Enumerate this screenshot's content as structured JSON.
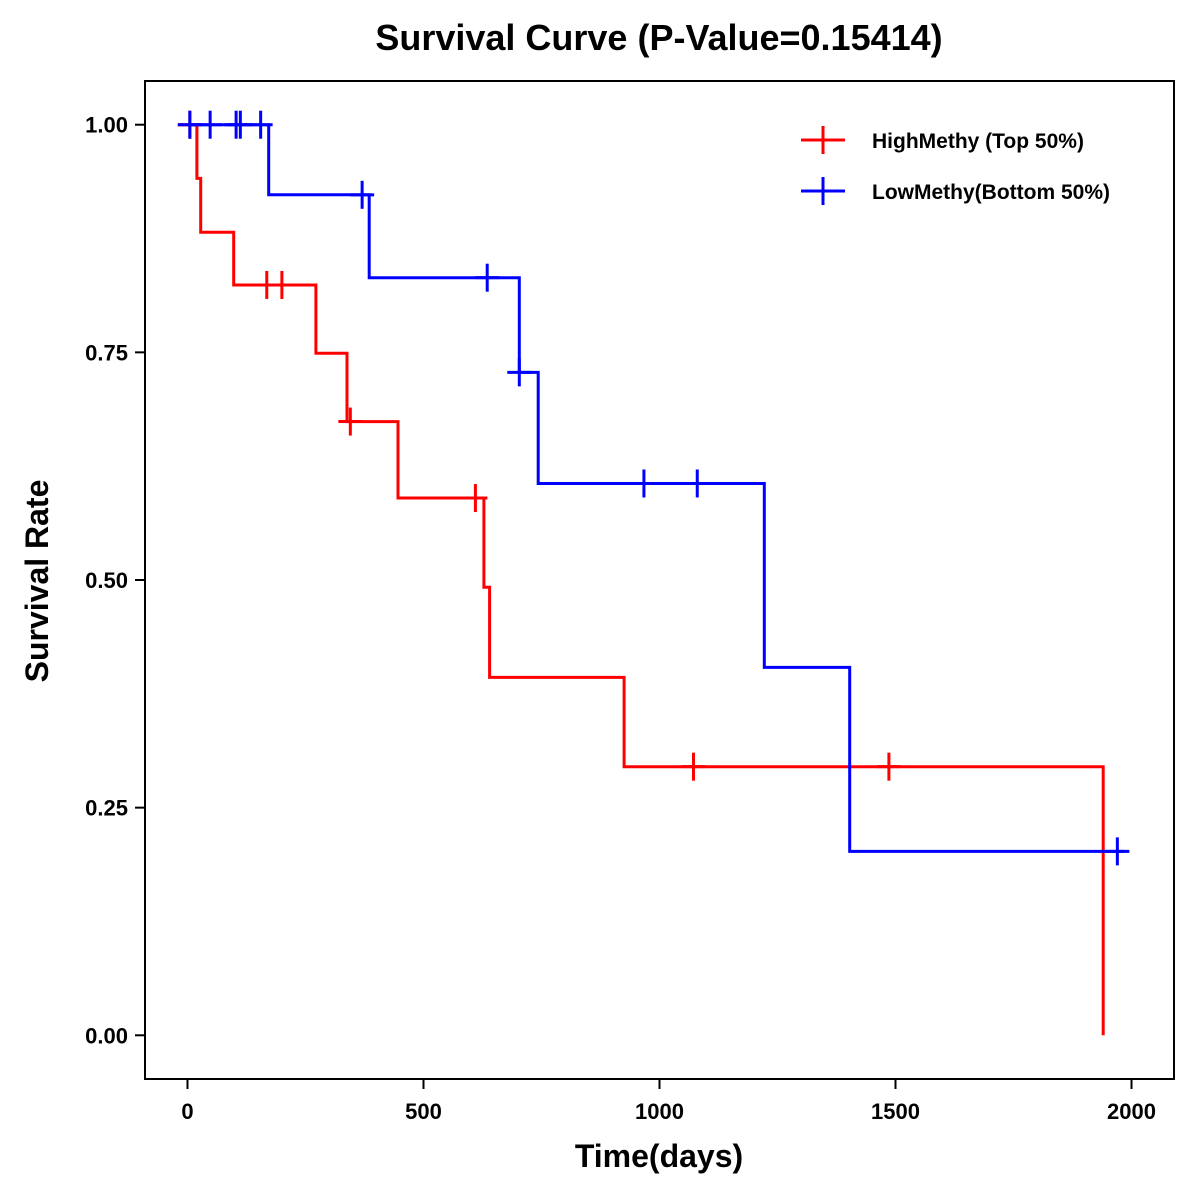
{
  "chart_data": {
    "type": "line",
    "subtype": "kaplan-meier step curve",
    "title": "Survival Curve (P-Value=0.15414)",
    "xlabel": "Time(days)",
    "ylabel": "Survival Rate",
    "xlim": [
      -90,
      2090
    ],
    "ylim": [
      -0.048,
      1.048
    ],
    "x_ticks": [
      0,
      500,
      1000,
      1500,
      2000
    ],
    "x_tick_labels": [
      "0",
      "500",
      "1000",
      "1500",
      "2000"
    ],
    "y_ticks": [
      0,
      0.25,
      0.5,
      0.75,
      1.0
    ],
    "y_tick_labels": [
      "0.00",
      "0.25",
      "0.50",
      "0.75",
      "1.00"
    ],
    "grid": false,
    "legend_position": "top-right",
    "series": [
      {
        "name": "HighMethy (Top 50%)",
        "color": "#ff0000",
        "steps": [
          [
            -20,
            1.0
          ],
          [
            20,
            1.0
          ],
          [
            20,
            0.941
          ],
          [
            28,
            0.941
          ],
          [
            28,
            0.882
          ],
          [
            98,
            0.882
          ],
          [
            98,
            0.824
          ],
          [
            272,
            0.824
          ],
          [
            272,
            0.749
          ],
          [
            338,
            0.749
          ],
          [
            338,
            0.674
          ],
          [
            446,
            0.674
          ],
          [
            446,
            0.59
          ],
          [
            628,
            0.59
          ],
          [
            628,
            0.492
          ],
          [
            640,
            0.492
          ],
          [
            640,
            0.393
          ],
          [
            925,
            0.393
          ],
          [
            925,
            0.295
          ],
          [
            1940,
            0.295
          ],
          [
            1940,
            0.0
          ]
        ],
        "censored": [
          [
            5,
            1.0
          ],
          [
            168,
            0.824
          ],
          [
            200,
            0.824
          ],
          [
            345,
            0.674
          ],
          [
            610,
            0.59
          ],
          [
            1072,
            0.295
          ],
          [
            1486,
            0.295
          ]
        ]
      },
      {
        "name": "LowMethy(Bottom 50%)",
        "color": "#0000ff",
        "steps": [
          [
            0,
            1.0
          ],
          [
            172,
            1.0
          ],
          [
            172,
            0.923
          ],
          [
            385,
            0.923
          ],
          [
            385,
            0.832
          ],
          [
            703,
            0.832
          ],
          [
            703,
            0.728
          ],
          [
            743,
            0.728
          ],
          [
            743,
            0.606
          ],
          [
            1222,
            0.606
          ],
          [
            1222,
            0.404
          ],
          [
            1403,
            0.404
          ],
          [
            1403,
            0.202
          ],
          [
            1985,
            0.202
          ]
        ],
        "censored": [
          [
            5,
            1.0
          ],
          [
            48,
            1.0
          ],
          [
            103,
            1.0
          ],
          [
            112,
            1.0
          ],
          [
            155,
            1.0
          ],
          [
            370,
            0.923
          ],
          [
            635,
            0.832
          ],
          [
            703,
            0.728
          ],
          [
            967,
            0.606
          ],
          [
            1080,
            0.606
          ],
          [
            1970,
            0.202
          ]
        ]
      }
    ]
  }
}
